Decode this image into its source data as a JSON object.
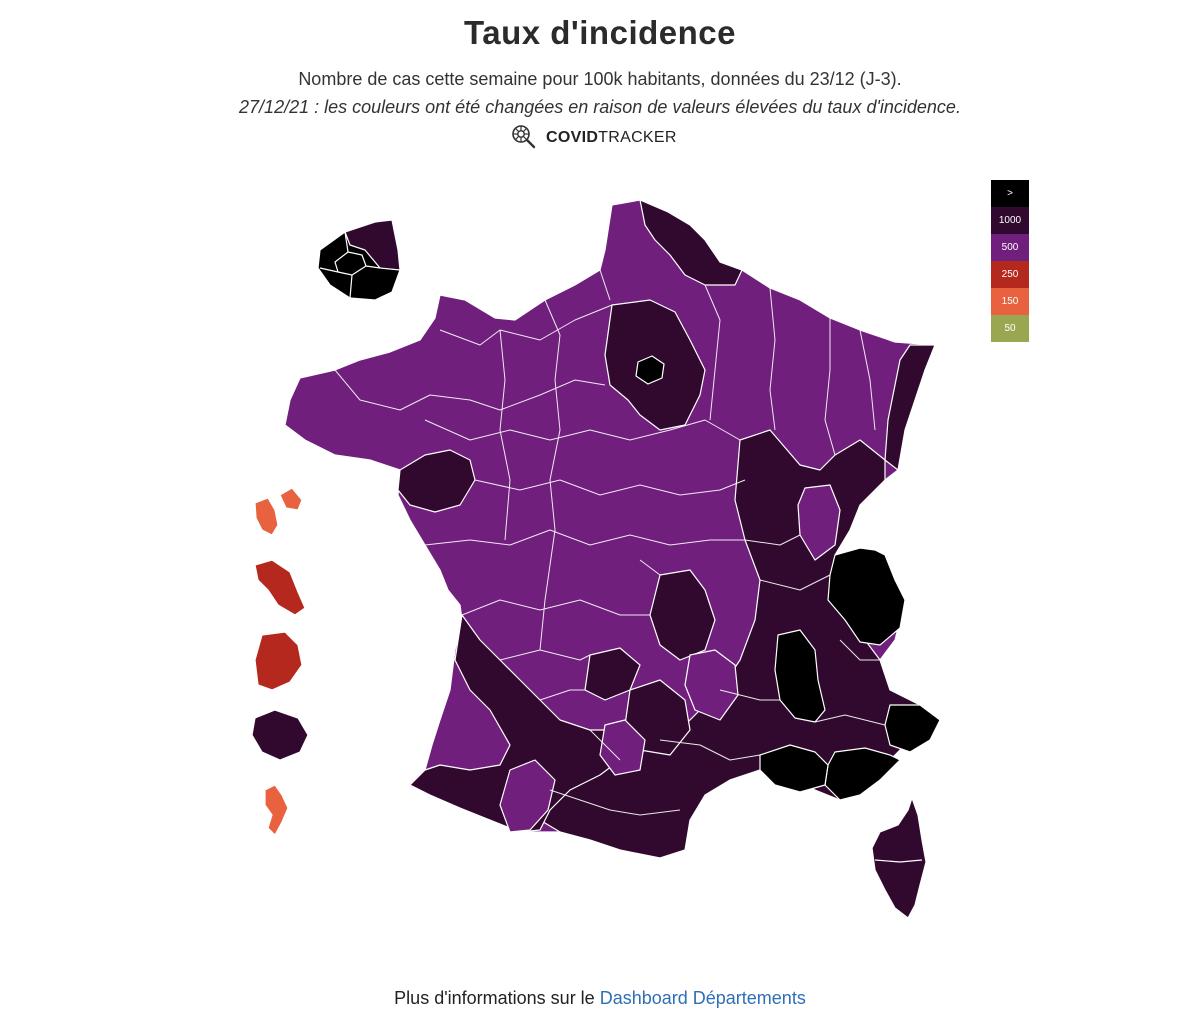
{
  "header": {
    "title": "Taux d'incidence",
    "subtitle": "Nombre de cas cette semaine pour 100k habitants, données du 23/12 (J-3).",
    "note": "27/12/21 : les couleurs ont été changées en raison de valeurs élevées du taux d'incidence.",
    "brand_bold": "COVID",
    "brand_rest": "TRACKER",
    "brand_icon": "virus-magnifier-icon"
  },
  "legend": [
    {
      "label": ">",
      "color": "#000000"
    },
    {
      "label": "1000",
      "color": "#31092e"
    },
    {
      "label": "500",
      "color": "#701f7d"
    },
    {
      "label": "250",
      "color": "#b5281d"
    },
    {
      "label": "150",
      "color": "#e8623f"
    },
    {
      "label": "50",
      "color": "#9aa650"
    }
  ],
  "colors": {
    "above_1000": "#000000",
    "from_1000": "#31092e",
    "from_500": "#701f7d",
    "from_250": "#b5281d",
    "from_150": "#e8623f",
    "from_50": "#9aa650"
  },
  "footer": {
    "text": "Plus d'informations sur le ",
    "link": "Dashboard Départements"
  }
}
